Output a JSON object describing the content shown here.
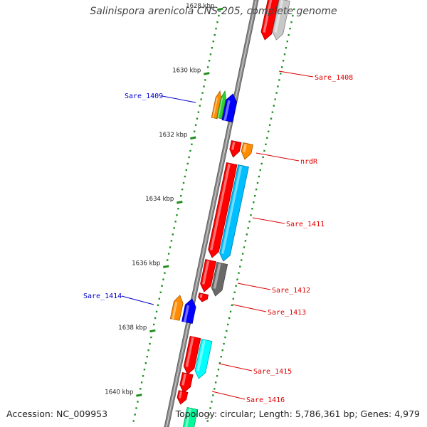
{
  "title": "Salinispora arenicola CNS-205, complete genome",
  "accession_text": "Accession: NC_009953",
  "summary_text": "Topology: circular; Length: 5,786,361 bp; Genes: 4,979",
  "ticks": [
    {
      "label": "1628 kbp",
      "kbp": 1628
    },
    {
      "label": "1630 kbp",
      "kbp": 1630
    },
    {
      "label": "1632 kbp",
      "kbp": 1632
    },
    {
      "label": "1634 kbp",
      "kbp": 1634
    },
    {
      "label": "1636 kbp",
      "kbp": 1636
    },
    {
      "label": "1638 kbp",
      "kbp": 1638
    },
    {
      "label": "1640 kbp",
      "kbp": 1640
    }
  ],
  "features": [
    {
      "strand": "reverse",
      "color": "#ff0000"
    },
    {
      "strand": "reverse",
      "color": "#c8c8c8"
    },
    {
      "strand": "forward",
      "color": "#ff8c00"
    },
    {
      "strand": "forward",
      "color": "#32cd32"
    },
    {
      "strand": "forward",
      "color": "#0000ff"
    },
    {
      "strand": "reverse",
      "color": "#ff0000"
    },
    {
      "strand": "reverse",
      "color": "#ff8c00"
    },
    {
      "strand": "reverse",
      "color": "#ff0000"
    },
    {
      "strand": "reverse",
      "color": "#00bfff"
    },
    {
      "strand": "reverse",
      "color": "#ff0000"
    },
    {
      "strand": "reverse",
      "color": "#696969"
    },
    {
      "strand": "reverse",
      "color": "#ff0000"
    },
    {
      "strand": "forward",
      "color": "#ff8c00"
    },
    {
      "strand": "forward",
      "color": "#0000ff"
    },
    {
      "strand": "reverse",
      "color": "#ff0000"
    },
    {
      "strand": "reverse",
      "color": "#00ffff"
    },
    {
      "strand": "reverse",
      "color": "#ff0000"
    },
    {
      "strand": "reverse",
      "color": "#ff0000"
    },
    {
      "strand": "reverse",
      "color": "#00fa9a"
    }
  ],
  "gene_labels": [
    {
      "text": "Sare_1408",
      "color": "#dd0000",
      "side": "right"
    },
    {
      "text": "Sare_1409",
      "color": "#0000cc",
      "side": "left"
    },
    {
      "text": "nrdR",
      "color": "#dd0000",
      "side": "right"
    },
    {
      "text": "Sare_1411",
      "color": "#dd0000",
      "side": "right"
    },
    {
      "text": "Sare_1412",
      "color": "#dd0000",
      "side": "right"
    },
    {
      "text": "Sare_1413",
      "color": "#dd0000",
      "side": "right"
    },
    {
      "text": "Sare_1414",
      "color": "#0000cc",
      "side": "left"
    },
    {
      "text": "Sare_1415",
      "color": "#dd0000",
      "side": "right"
    },
    {
      "text": "Sare_1416",
      "color": "#dd0000",
      "side": "right"
    }
  ]
}
